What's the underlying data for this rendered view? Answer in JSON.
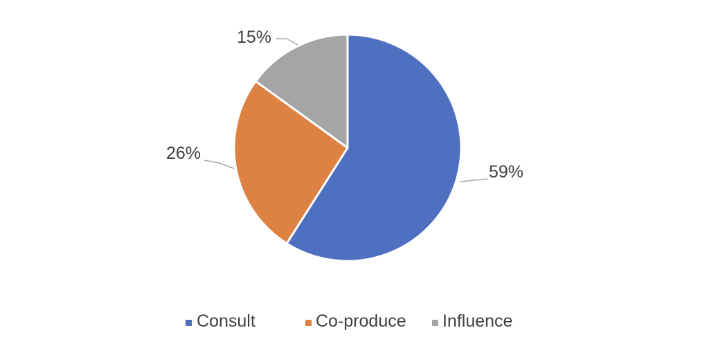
{
  "chart_data": {
    "type": "pie",
    "start_angle_deg": 0,
    "direction": "clockwise",
    "slices": [
      {
        "label": "Consult",
        "value": 59,
        "data_label": "59%",
        "color": "#4f6fc0"
      },
      {
        "label": "Co-produce",
        "value": 26,
        "data_label": "26%",
        "color": "#de8243"
      },
      {
        "label": "Influence",
        "value": 15,
        "data_label": "15%",
        "color": "#a5a5a5"
      }
    ],
    "legend_position": "bottom",
    "leader_line_color": "#a6a6a6",
    "slice_border_color": "#ffffff"
  }
}
